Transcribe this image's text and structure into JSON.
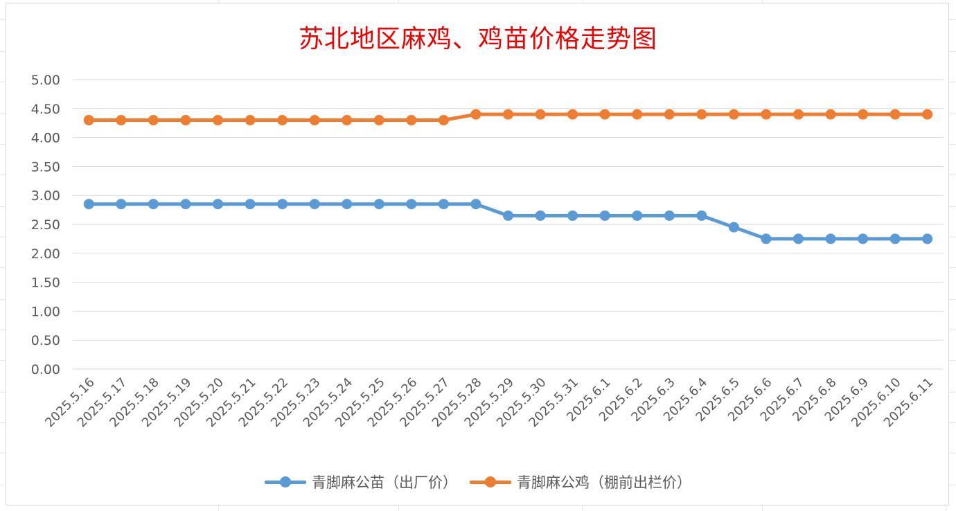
{
  "title": "苏北地区麻鸡、鸡苗价格走势图",
  "colors": {
    "series1": "#5b9bd5",
    "series2": "#ed7d31",
    "title": "#ee0000",
    "grid": "#d9d9d9"
  },
  "chart_data": {
    "type": "line",
    "title": "苏北地区麻鸡、鸡苗价格走势图",
    "x": [
      "2025.5.16",
      "2025.5.17",
      "2025.5.18",
      "2025.5.19",
      "2025.5.20",
      "2025.5.21",
      "2025.5.22",
      "2025.5.23",
      "2025.5.24",
      "2025.5.25",
      "2025.5.26",
      "2025.5.27",
      "2025.5.28",
      "2025.5.29",
      "2025.5.30",
      "2025.5.31",
      "2025.6.1",
      "2025.6.2",
      "2025.6.3",
      "2025.6.4",
      "2025.6.5",
      "2025.6.6",
      "2025.6.7",
      "2025.6.8",
      "2025.6.9",
      "2025.6.10",
      "2025.6.11"
    ],
    "series": [
      {
        "name": "青脚麻公苗（出厂价）",
        "values": [
          2.85,
          2.85,
          2.85,
          2.85,
          2.85,
          2.85,
          2.85,
          2.85,
          2.85,
          2.85,
          2.85,
          2.85,
          2.85,
          2.65,
          2.65,
          2.65,
          2.65,
          2.65,
          2.65,
          2.65,
          2.45,
          2.25,
          2.25,
          2.25,
          2.25,
          2.25,
          2.25
        ]
      },
      {
        "name": "青脚麻公鸡（棚前出栏价）",
        "values": [
          4.3,
          4.3,
          4.3,
          4.3,
          4.3,
          4.3,
          4.3,
          4.3,
          4.3,
          4.3,
          4.3,
          4.3,
          4.4,
          4.4,
          4.4,
          4.4,
          4.4,
          4.4,
          4.4,
          4.4,
          4.4,
          4.4,
          4.4,
          4.4,
          4.4,
          4.4,
          4.4
        ]
      }
    ],
    "yticks": [
      "0.00",
      "0.50",
      "1.00",
      "1.50",
      "2.00",
      "2.50",
      "3.00",
      "3.50",
      "4.00",
      "4.50",
      "5.00"
    ],
    "ylim": [
      0,
      5
    ],
    "xlabel": "",
    "ylabel": "",
    "grid": true,
    "legend": "bottom"
  }
}
